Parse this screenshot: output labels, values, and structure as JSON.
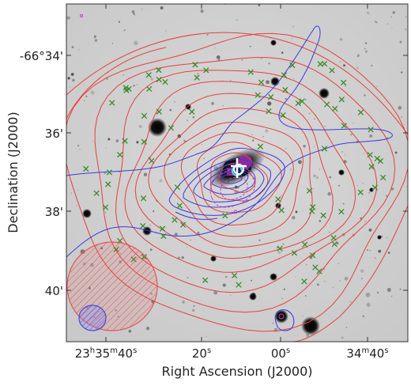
{
  "axes": {
    "xlabel": "Right Ascension (J2000)",
    "ylabel": "Declination (J2000)",
    "xticks": [
      {
        "h": "23",
        "hsup": "h",
        "m": "35",
        "msup": "m",
        "s": "40",
        "ssup": "s"
      },
      {
        "h": "",
        "hsup": "",
        "m": "",
        "msup": "",
        "s": "20",
        "ssup": "s"
      },
      {
        "h": "",
        "hsup": "",
        "m": "",
        "msup": "",
        "s": "00",
        "ssup": "s"
      },
      {
        "h": "",
        "hsup": "",
        "m": "34",
        "msup": "m",
        "s": "40",
        "ssup": "s"
      }
    ],
    "yticks": [
      "-66°34'",
      "36'",
      "38'",
      "40'"
    ]
  },
  "colors": {
    "red_contours": "#e8403c",
    "blue_contours": "#3a3ae0",
    "crosses": "#3a8a2a",
    "beam_red": "#e85050",
    "beam_blue": "#4040d0",
    "magenta": "#c040c0",
    "cyan": "#40e0ff"
  },
  "markers": {
    "galaxy_marker": "white-cross-circle",
    "members_marker": "green-x"
  }
}
